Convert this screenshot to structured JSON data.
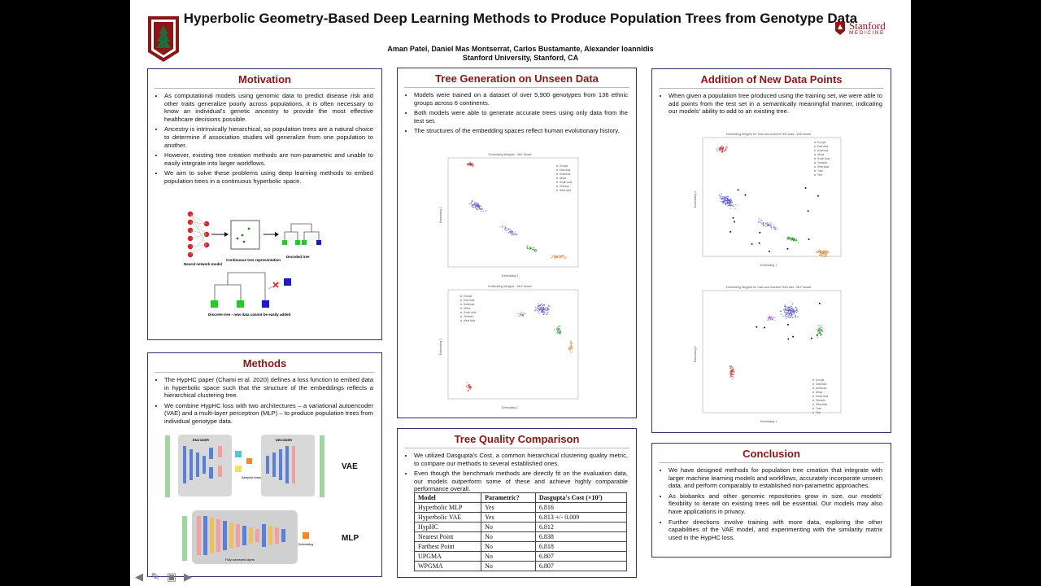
{
  "header": {
    "title": "Hyperbolic Geometry-Based Deep Learning Methods to Produce Population Trees from Genotype Data",
    "authors": "Aman Patel, Daniel Mas Montserrat, Carlos Bustamante, Alexander Ioannidis",
    "affiliation": "Stanford University, Stanford, CA",
    "logo_right": "Stanford",
    "logo_right_sub": "MEDICINE"
  },
  "colors": {
    "brand": "#8c1515",
    "border": "#2b3a6b"
  },
  "motivation": {
    "title": "Motivation",
    "bullets": [
      "As computational models using genomic data to predict disease risk and other traits generalize poorly across populations, it is often necessary to know an individual's genetic ancestry to provide the most effective healthcare decisions possible.",
      "Ancestry is intrinsically hierarchical, so population trees are a natural choice to determine if association studies will generalize from one population to another.",
      "However, existing tree creation methods are non-parametric and unable to easily integrate into larger workflows.",
      "We aim to solve these problems using deep learning methods to embed population trees in a continuous hyperbolic space."
    ],
    "fig_labels": {
      "nn": "Neural network model",
      "cont": "Continuous tree representation",
      "decoded": "Decoded tree",
      "discrete": "Discrete tree - new data cannot be easily added"
    }
  },
  "methods": {
    "title": "Methods",
    "bullets": [
      "The HypHC paper (Chami et al. 2020) defines a loss function to embed data in hyperbolic space such that the structure of the embeddings reflects a hierarchical clustering tree.",
      "We combine HypHC loss with two architectures – a variational autoencoder (VAE) and a multi-layer perceptron (MLP) – to produce population trees from individual genotype data."
    ],
    "vae_label": "VAE",
    "mlp_label": "MLP",
    "encoder": "ENCODER",
    "decoder": "DECODER",
    "sampled": "Sampled embedding",
    "fc_layers": "Fully connected layers",
    "embedding": "Embedding"
  },
  "tree_gen": {
    "title": "Tree Generation on Unseen Data",
    "bullets": [
      "Models were trained on a dataset of over 5,900 genotypes from 136 ethnic groups across 6 continents.",
      "Both models were able to generate accurate trees using only data from the test set.",
      "The structures of the embedding spaces reflect human evolutionary history."
    ],
    "plot1_title": "Embedding Weights - VAE Model",
    "plot2_title": "Embedding Weights - MLP Model",
    "xlabel": "Embedding 1",
    "ylabel": "Embedding 2",
    "legend": [
      "Europe",
      "East Asia",
      "Americas",
      "Africa",
      "South Asia",
      "Oceania",
      "West Asia"
    ]
  },
  "addition": {
    "title": "Addition of New Data Points",
    "bullets": [
      "When given a population tree produced using the training set, we were able to add points from the test set in a semantically meaningful manner, indicating our models' ability to add to an existing tree."
    ],
    "plot1_title": "Embedding Weights for Train and Inserted Test Data - VAE Model",
    "plot2_title": "Embedding Weights for Train and Inserted Test Data - MLP Model",
    "legend": [
      "Europe",
      "East Asia",
      "Americas",
      "Africa",
      "South Asia",
      "Oceania",
      "West Asia",
      "Train",
      "Test"
    ]
  },
  "quality": {
    "title": "Tree Quality Comparison",
    "bullets": [
      "We utilized Dasgupta's Cost, a common hierarchical clustering quality metric, to compare our methods to several established ones.",
      "Even though the benchmark methods are directly fit on the evaluation data, our models outperform some of these and achieve highly comparable performance overall."
    ],
    "table": {
      "headers": [
        "Model",
        "Parametric?",
        "Dasgupta's Cost (×10⁷)"
      ],
      "rows": [
        [
          "Hyperbolic MLP",
          "Yes",
          "6.816"
        ],
        [
          "Hyperbolic VAE",
          "Yes",
          "6.813 +/- 0.009"
        ],
        [
          "HypHC",
          "No",
          "6.812"
        ],
        [
          "Nearest Point",
          "No",
          "6.838"
        ],
        [
          "Farthest Point",
          "No",
          "6.818"
        ],
        [
          "UPGMA",
          "No",
          "6.807"
        ],
        [
          "WPGMA",
          "No",
          "6.807"
        ]
      ]
    }
  },
  "conclusion": {
    "title": "Conclusion",
    "bullets": [
      "We have designed methods for population tree creation that integrate with larger machine learning models and workflows, accurately incorporate unseen data, and perform comparably to established non-parametric approaches.",
      "As biobanks and other genomic repositories grow in size, our models' flexibility to iterate on existing trees will be essential. Our models may also have applications in privacy.",
      "Further directions involve training with more data, exploring the other capabilities of the VAE model, and experimenting with the similarity matrix used in the HypHC loss."
    ]
  },
  "nav_icons": [
    "arrow-left-icon",
    "pen-icon",
    "monitor-icon",
    "arrow-right-icon"
  ]
}
